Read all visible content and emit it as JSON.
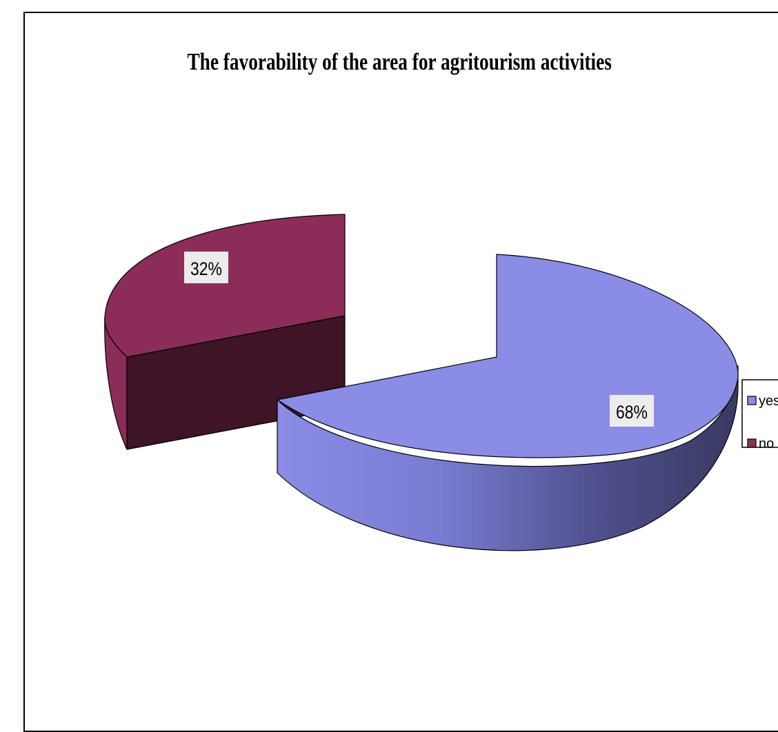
{
  "chart_data": {
    "type": "pie",
    "title": "The favorability of the area for agritourism activities",
    "categories": [
      "yes",
      "no"
    ],
    "values": [
      68,
      32
    ],
    "labels": [
      "68%",
      "32%"
    ],
    "colors": [
      "#8a8ce6",
      "#8b2d58"
    ],
    "side_colors": [
      "#3b3c66",
      "#3e1426"
    ],
    "legend": {
      "position": "right",
      "entries": [
        "yes",
        "no"
      ]
    },
    "style": "3d-exploded"
  }
}
